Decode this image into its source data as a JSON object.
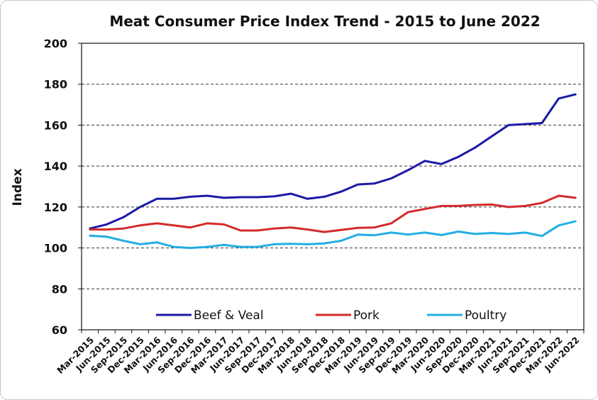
{
  "chart_data": {
    "type": "line",
    "title": "Meat Consumer Price Index Trend - 2015 to June 2022",
    "xlabel": "",
    "ylabel": "Index",
    "ylim": [
      60,
      200
    ],
    "yticks": [
      60,
      80,
      100,
      120,
      140,
      160,
      180,
      200
    ],
    "grid": "horizontal dashed",
    "legend_position": "bottom-inside",
    "categories": [
      "Mar-2015",
      "Jun-2015",
      "Sep-2015",
      "Dec-2015",
      "Mar-2016",
      "Jun-2016",
      "Sep-2016",
      "Dec-2016",
      "Mar-2017",
      "Jun-2017",
      "Sep-2017",
      "Dec-2017",
      "Mar-2018",
      "Jun-2018",
      "Sep-2018",
      "Dec-2018",
      "Mar-2019",
      "Jun-2019",
      "Sep-2019",
      "Dec-2019",
      "Mar-2020",
      "Jun-2020",
      "Sep-2020",
      "Dec-2020",
      "Mar-2021",
      "Jun-2021",
      "Sep-2021",
      "Dec-2021",
      "Mar-2022",
      "Jun-2022"
    ],
    "series": [
      {
        "name": "Beef & Veal",
        "color": "#1a1aa6",
        "values": [
          109.5,
          111.5,
          115,
          120,
          124,
          124,
          125,
          125.5,
          124.5,
          124.8,
          124.8,
          125.2,
          126.5,
          124,
          125,
          127.5,
          131,
          131.5,
          134,
          138,
          142.5,
          141,
          144.5,
          149,
          154.5,
          160,
          160.5,
          161,
          173,
          175
        ]
      },
      {
        "name": "Pork",
        "color": "#d42a2a",
        "values": [
          109,
          109,
          109.5,
          111,
          112,
          111,
          110,
          112,
          111.5,
          108.5,
          108.5,
          109.5,
          110,
          109,
          107.8,
          108.8,
          109.8,
          110,
          112,
          117.5,
          119,
          120.5,
          120.5,
          121,
          121.2,
          120,
          120.5,
          122,
          125.5,
          124.5
        ]
      },
      {
        "name": "Poultry",
        "color": "#23aee3",
        "values": [
          106,
          105.5,
          103.5,
          101.8,
          102.7,
          100.5,
          100,
          100.5,
          101.5,
          100.5,
          100.5,
          101.8,
          102,
          101.8,
          102.2,
          103.5,
          106.5,
          106.2,
          107.5,
          106.5,
          107.5,
          106.3,
          108,
          106.8,
          107.3,
          106.8,
          107.5,
          105.8,
          111,
          113
        ]
      }
    ]
  }
}
